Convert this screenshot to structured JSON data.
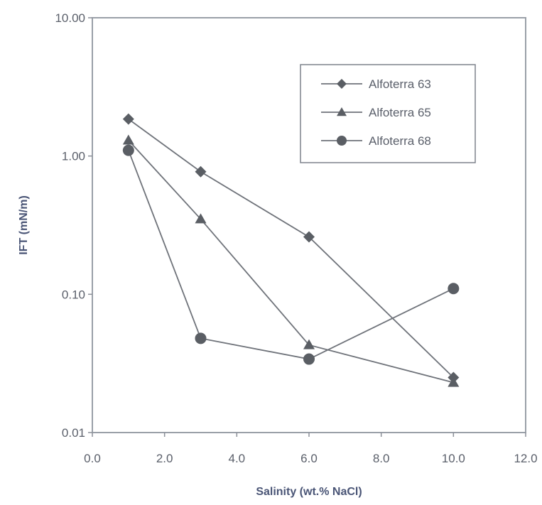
{
  "chart_data": {
    "type": "line",
    "title": "",
    "xlabel": "Salinity (wt.% NaCl)",
    "ylabel": "IFT (mN/m)",
    "xlim": [
      0,
      12
    ],
    "ylim": [
      0.01,
      10
    ],
    "y_scale": "log",
    "x_ticks": [
      "0.0",
      "2.0",
      "4.0",
      "6.0",
      "8.0",
      "10.0",
      "12.0"
    ],
    "y_ticks": [
      "0.01",
      "0.10",
      "1.00",
      "10.00"
    ],
    "grid": false,
    "legend_position": "top-right",
    "series": [
      {
        "name": "Alfoterra 63",
        "marker": "diamond",
        "x": [
          1,
          3,
          6,
          10
        ],
        "y": [
          1.85,
          0.77,
          0.26,
          0.025
        ]
      },
      {
        "name": "Alfoterra 65",
        "marker": "triangle",
        "x": [
          1,
          3,
          6,
          10
        ],
        "y": [
          1.3,
          0.35,
          0.043,
          0.023
        ]
      },
      {
        "name": "Alfoterra 68",
        "marker": "circle",
        "x": [
          1,
          3,
          6,
          10
        ],
        "y": [
          1.1,
          0.048,
          0.034,
          0.11
        ]
      }
    ]
  }
}
